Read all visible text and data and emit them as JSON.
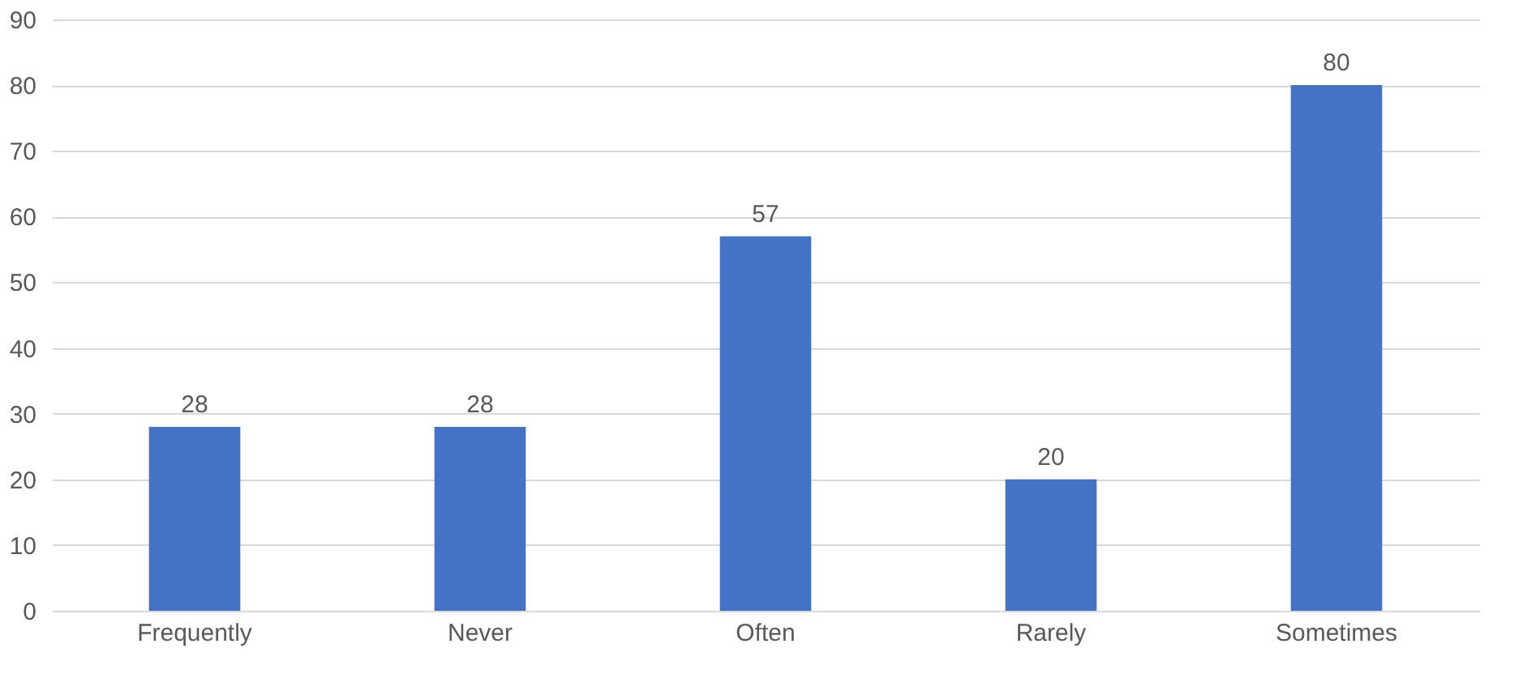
{
  "chart_data": {
    "type": "bar",
    "categories": [
      "Frequently",
      "Never",
      "Often",
      "Rarely",
      "Sometimes"
    ],
    "values": [
      28,
      28,
      57,
      20,
      80
    ],
    "color": "#4472c4",
    "ylim": [
      0,
      90
    ],
    "yticks": [
      0,
      10,
      20,
      30,
      40,
      50,
      60,
      70,
      80,
      90
    ],
    "grid": "y",
    "data_labels": true
  }
}
